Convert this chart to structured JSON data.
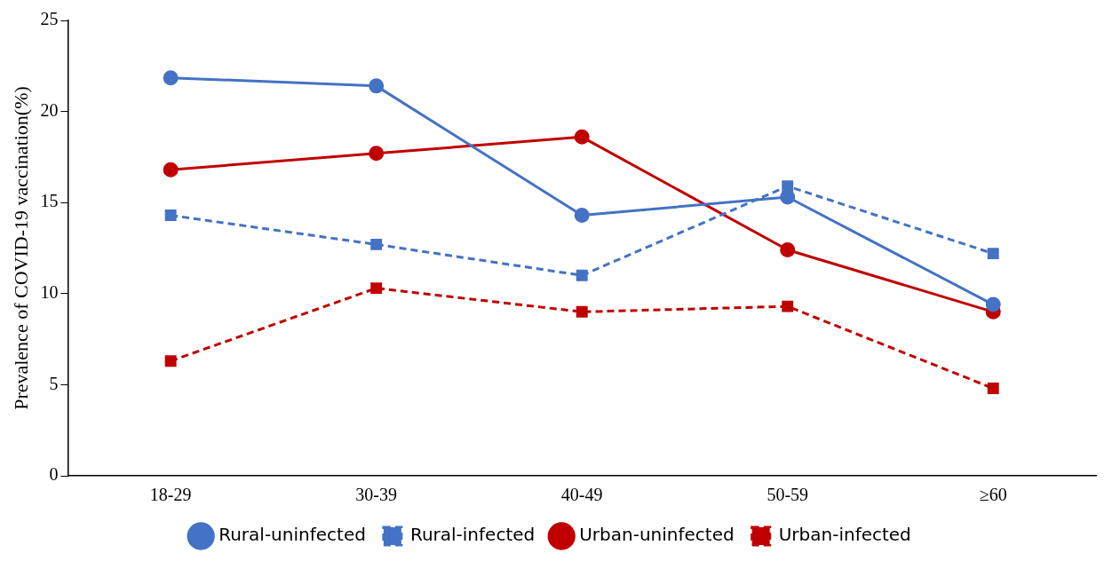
{
  "chart_data": {
    "type": "line",
    "ylabel": "Prevalence of COVID-19 vaccination(%)",
    "categories": [
      "18-29",
      "30-39",
      "40-49",
      "50-59",
      "≥60"
    ],
    "ylim": [
      0,
      25
    ],
    "yticks": [
      0,
      5,
      10,
      15,
      20,
      25
    ],
    "grid": false,
    "legend": "bottom",
    "series": [
      {
        "name": "Rural-uninfected",
        "color": "#4472c4",
        "marker": "circle",
        "line_style": "solid",
        "values": [
          21.85,
          21.4,
          14.3,
          15.3,
          9.4
        ]
      },
      {
        "name": "Rural-infected",
        "color": "#4472c4",
        "marker": "square",
        "line_style": "dashed",
        "values": [
          14.3,
          12.7,
          11.0,
          15.9,
          12.2
        ]
      },
      {
        "name": "Urban-uninfected",
        "color": "#c00000",
        "marker": "circle",
        "line_style": "solid",
        "values": [
          16.8,
          17.7,
          18.6,
          12.4,
          9.0
        ]
      },
      {
        "name": "Urban-infected",
        "color": "#c00000",
        "marker": "square",
        "line_style": "dashed",
        "values": [
          6.3,
          10.3,
          9.0,
          9.3,
          4.8
        ]
      }
    ]
  }
}
